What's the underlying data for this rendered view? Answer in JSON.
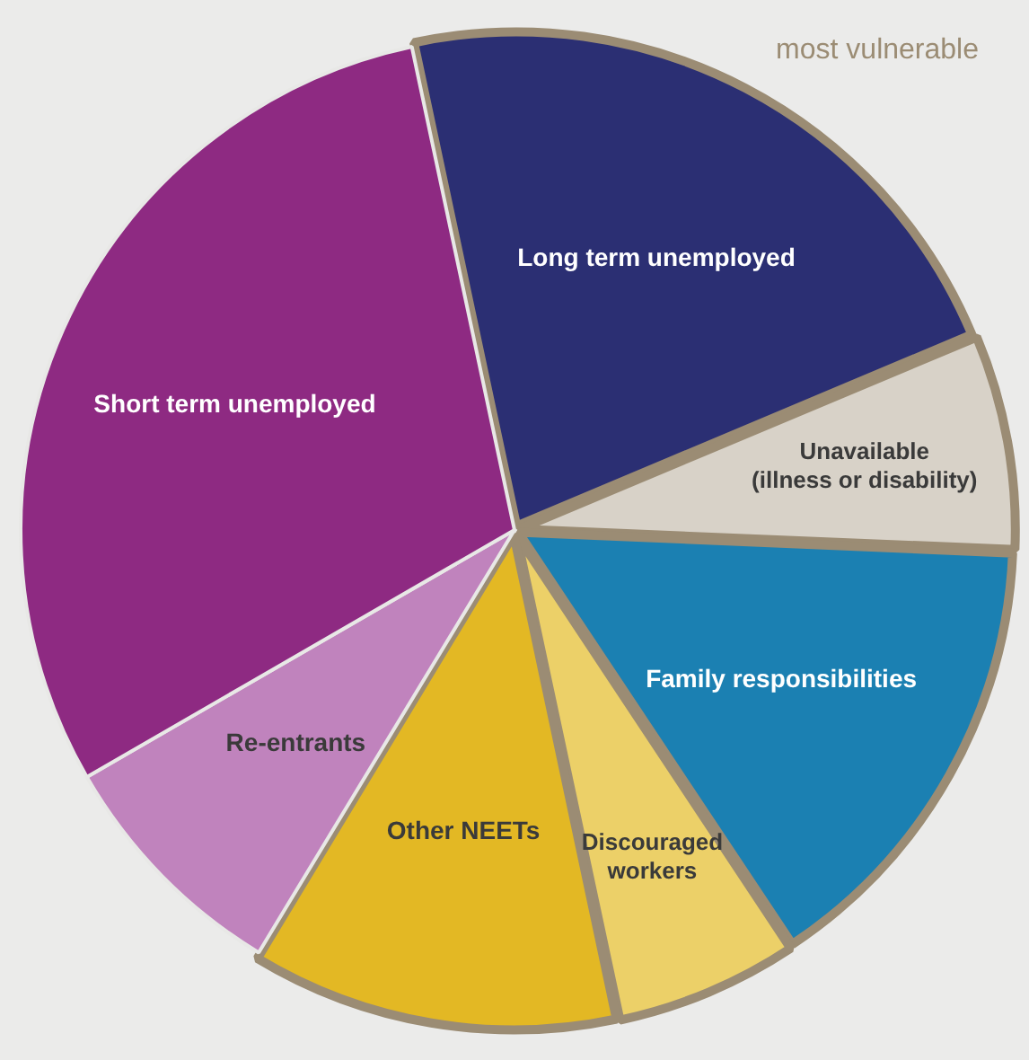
{
  "chart_data": {
    "type": "pie",
    "categories": [
      "Long term unemployed",
      "Unavailable\n(illness or disability)",
      "Family responsibilities",
      "Discouraged\nworkers",
      "Other NEETs",
      "Re-entrants",
      "Short term unemployed"
    ],
    "values": [
      22,
      7,
      15,
      6,
      12,
      8,
      30
    ],
    "colors": [
      "#2b2f73",
      "#d8d2c8",
      "#1b80b2",
      "#ecd068",
      "#e3b824",
      "#c083bd",
      "#8e2a82"
    ],
    "legend": false,
    "annotations": [
      "most vulnerable"
    ]
  }
}
